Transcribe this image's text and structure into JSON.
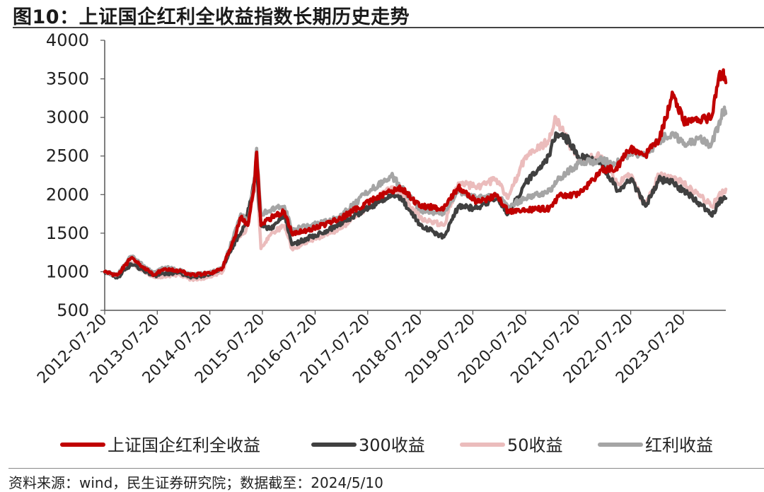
{
  "header": {
    "title": "图10：上证国企红利全收益指数长期历史走势"
  },
  "footer": {
    "source": "资料来源：wind，民生证券研究院；数据截至：2024/5/10"
  },
  "chart_data": {
    "type": "line",
    "title": "图10：上证国企红利全收益指数长期历史走势",
    "xlabel": "",
    "ylabel": "",
    "ylim": [
      500,
      4000
    ],
    "yticks": [
      500,
      1000,
      1500,
      2000,
      2500,
      3000,
      3500,
      4000
    ],
    "xlim": [
      "2012-07-20",
      "2024-05-10"
    ],
    "xticks": [
      "2012-07-20",
      "2013-07-20",
      "2014-07-20",
      "2015-07-20",
      "2016-07-20",
      "2017-07-20",
      "2018-07-20",
      "2019-07-20",
      "2020-07-20",
      "2021-07-20",
      "2022-07-20",
      "2023-07-20"
    ],
    "legend_position": "bottom",
    "grid": false,
    "series": [
      {
        "name": "上证国企红利全收益",
        "color": "#c00000",
        "points": [
          [
            "2012-07-20",
            1000
          ],
          [
            "2012-10-15",
            955
          ],
          [
            "2013-01-20",
            1180
          ],
          [
            "2013-03-15",
            1100
          ],
          [
            "2013-06-25",
            960
          ],
          [
            "2013-09-15",
            1040
          ],
          [
            "2013-12-20",
            1010
          ],
          [
            "2014-03-15",
            960
          ],
          [
            "2014-07-20",
            980
          ],
          [
            "2014-10-15",
            1050
          ],
          [
            "2014-12-31",
            1400
          ],
          [
            "2015-02-20",
            1700
          ],
          [
            "2015-04-10",
            1600
          ],
          [
            "2015-05-20",
            2050
          ],
          [
            "2015-06-10",
            2550
          ],
          [
            "2015-07-10",
            1600
          ],
          [
            "2015-09-20",
            1700
          ],
          [
            "2015-12-20",
            1780
          ],
          [
            "2016-02-10",
            1500
          ],
          [
            "2016-06-20",
            1550
          ],
          [
            "2016-12-31",
            1680
          ],
          [
            "2017-06-30",
            1880
          ],
          [
            "2017-12-31",
            2050
          ],
          [
            "2018-03-10",
            2080
          ],
          [
            "2018-07-20",
            1850
          ],
          [
            "2018-12-31",
            1820
          ],
          [
            "2019-04-10",
            2100
          ],
          [
            "2019-08-20",
            1900
          ],
          [
            "2019-12-31",
            1990
          ],
          [
            "2020-03-20",
            1780
          ],
          [
            "2020-07-20",
            1800
          ],
          [
            "2020-12-31",
            1820
          ],
          [
            "2021-03-10",
            1980
          ],
          [
            "2021-07-20",
            2000
          ],
          [
            "2021-12-31",
            2320
          ],
          [
            "2022-04-10",
            2350
          ],
          [
            "2022-07-20",
            2600
          ],
          [
            "2022-10-31",
            2520
          ],
          [
            "2023-01-31",
            2700
          ],
          [
            "2023-05-10",
            3300
          ],
          [
            "2023-07-20",
            2950
          ],
          [
            "2023-10-31",
            2980
          ],
          [
            "2024-01-31",
            3000
          ],
          [
            "2024-03-20",
            3500
          ],
          [
            "2024-04-20",
            3580
          ],
          [
            "2024-05-10",
            3450
          ]
        ]
      },
      {
        "name": "300收益",
        "color": "#404040",
        "points": [
          [
            "2012-07-20",
            1000
          ],
          [
            "2012-10-15",
            920
          ],
          [
            "2013-01-20",
            1100
          ],
          [
            "2013-06-25",
            950
          ],
          [
            "2013-12-20",
            990
          ],
          [
            "2014-03-15",
            930
          ],
          [
            "2014-07-20",
            960
          ],
          [
            "2014-10-15",
            1050
          ],
          [
            "2014-12-31",
            1350
          ],
          [
            "2015-03-20",
            1600
          ],
          [
            "2015-06-10",
            2300
          ],
          [
            "2015-07-10",
            1600
          ],
          [
            "2015-09-20",
            1550
          ],
          [
            "2015-12-20",
            1750
          ],
          [
            "2016-02-10",
            1350
          ],
          [
            "2016-06-20",
            1450
          ],
          [
            "2016-12-31",
            1600
          ],
          [
            "2017-06-30",
            1800
          ],
          [
            "2017-12-31",
            2000
          ],
          [
            "2018-03-10",
            1950
          ],
          [
            "2018-07-20",
            1600
          ],
          [
            "2018-12-31",
            1450
          ],
          [
            "2019-04-10",
            1850
          ],
          [
            "2019-08-20",
            1820
          ],
          [
            "2019-12-31",
            1950
          ],
          [
            "2020-03-20",
            1750
          ],
          [
            "2020-07-20",
            2150
          ],
          [
            "2020-12-31",
            2500
          ],
          [
            "2021-02-15",
            2800
          ],
          [
            "2021-05-20",
            2700
          ],
          [
            "2021-07-20",
            2500
          ],
          [
            "2021-12-31",
            2400
          ],
          [
            "2022-04-20",
            2050
          ],
          [
            "2022-07-20",
            2200
          ],
          [
            "2022-10-31",
            1850
          ],
          [
            "2023-01-31",
            2200
          ],
          [
            "2023-05-10",
            2150
          ],
          [
            "2023-07-20",
            2050
          ],
          [
            "2023-10-31",
            1900
          ],
          [
            "2024-02-05",
            1720
          ],
          [
            "2024-03-20",
            1900
          ],
          [
            "2024-05-10",
            1950
          ]
        ]
      },
      {
        "name": "50收益",
        "color": "#ebbcbc",
        "points": [
          [
            "2012-07-20",
            1000
          ],
          [
            "2012-10-15",
            940
          ],
          [
            "2013-01-20",
            1120
          ],
          [
            "2013-06-25",
            930
          ],
          [
            "2013-12-20",
            960
          ],
          [
            "2014-03-15",
            900
          ],
          [
            "2014-07-20",
            930
          ],
          [
            "2014-10-15",
            1000
          ],
          [
            "2014-12-31",
            1400
          ],
          [
            "2015-03-20",
            1500
          ],
          [
            "2015-06-10",
            2200
          ],
          [
            "2015-07-10",
            1300
          ],
          [
            "2015-09-20",
            1500
          ],
          [
            "2015-12-20",
            1600
          ],
          [
            "2016-02-10",
            1300
          ],
          [
            "2016-06-20",
            1400
          ],
          [
            "2016-12-31",
            1550
          ],
          [
            "2017-06-30",
            1800
          ],
          [
            "2017-12-31",
            2100
          ],
          [
            "2018-03-10",
            2000
          ],
          [
            "2018-07-20",
            1700
          ],
          [
            "2018-12-31",
            1600
          ],
          [
            "2019-04-10",
            2150
          ],
          [
            "2019-08-20",
            2100
          ],
          [
            "2019-12-31",
            2200
          ],
          [
            "2020-03-20",
            1950
          ],
          [
            "2020-07-20",
            2500
          ],
          [
            "2020-12-31",
            2700
          ],
          [
            "2021-02-15",
            3000
          ],
          [
            "2021-05-20",
            2650
          ],
          [
            "2021-07-20",
            2450
          ],
          [
            "2021-12-31",
            2500
          ],
          [
            "2022-04-20",
            2150
          ],
          [
            "2022-07-20",
            2250
          ],
          [
            "2022-10-31",
            1850
          ],
          [
            "2023-01-31",
            2250
          ],
          [
            "2023-05-10",
            2200
          ],
          [
            "2023-07-20",
            2150
          ],
          [
            "2023-10-31",
            2000
          ],
          [
            "2024-02-05",
            1850
          ],
          [
            "2024-03-20",
            1980
          ],
          [
            "2024-05-10",
            2070
          ]
        ]
      },
      {
        "name": "红利收益",
        "color": "#a5a5a5",
        "points": [
          [
            "2012-07-20",
            1000
          ],
          [
            "2012-10-15",
            960
          ],
          [
            "2013-01-20",
            1200
          ],
          [
            "2013-03-15",
            1120
          ],
          [
            "2013-06-25",
            980
          ],
          [
            "2013-09-15",
            1060
          ],
          [
            "2013-12-20",
            1020
          ],
          [
            "2014-03-15",
            960
          ],
          [
            "2014-07-20",
            990
          ],
          [
            "2014-10-15",
            1050
          ],
          [
            "2014-12-31",
            1450
          ],
          [
            "2015-02-20",
            1750
          ],
          [
            "2015-04-10",
            1650
          ],
          [
            "2015-05-20",
            2100
          ],
          [
            "2015-06-10",
            2600
          ],
          [
            "2015-07-10",
            1750
          ],
          [
            "2015-09-20",
            1800
          ],
          [
            "2015-12-20",
            1850
          ],
          [
            "2016-02-10",
            1550
          ],
          [
            "2016-06-20",
            1600
          ],
          [
            "2016-12-31",
            1700
          ],
          [
            "2017-06-30",
            2000
          ],
          [
            "2017-12-31",
            2250
          ],
          [
            "2018-03-10",
            2100
          ],
          [
            "2018-07-20",
            1800
          ],
          [
            "2018-12-31",
            1750
          ],
          [
            "2019-04-10",
            2050
          ],
          [
            "2019-08-20",
            1950
          ],
          [
            "2019-12-31",
            2000
          ],
          [
            "2020-03-20",
            1850
          ],
          [
            "2020-07-20",
            1950
          ],
          [
            "2020-12-31",
            2050
          ],
          [
            "2021-03-10",
            2200
          ],
          [
            "2021-07-20",
            2400
          ],
          [
            "2021-12-31",
            2450
          ],
          [
            "2022-04-10",
            2400
          ],
          [
            "2022-07-20",
            2550
          ],
          [
            "2022-10-31",
            2500
          ],
          [
            "2023-01-31",
            2700
          ],
          [
            "2023-05-10",
            2800
          ],
          [
            "2023-07-20",
            2650
          ],
          [
            "2023-10-31",
            2720
          ],
          [
            "2024-01-31",
            2650
          ],
          [
            "2024-03-20",
            2900
          ],
          [
            "2024-04-20",
            3100
          ],
          [
            "2024-05-10",
            3050
          ]
        ]
      }
    ]
  }
}
